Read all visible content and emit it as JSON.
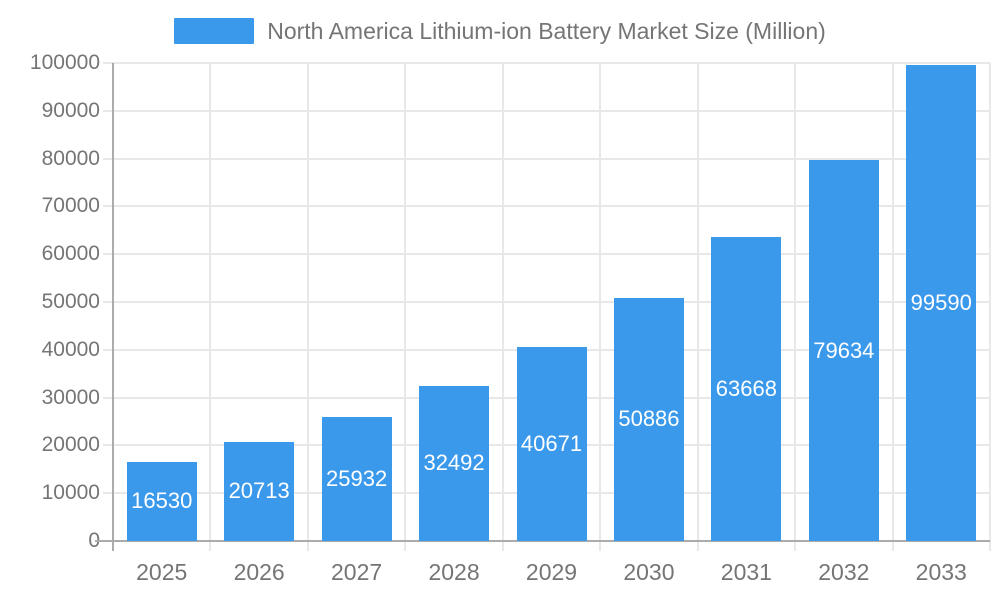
{
  "chart_data": {
    "type": "bar",
    "title": "North America Lithium-ion Battery Market Size (Million)",
    "categories": [
      "2025",
      "2026",
      "2027",
      "2028",
      "2029",
      "2030",
      "2031",
      "2032",
      "2033"
    ],
    "values": [
      16530,
      20713,
      25932,
      32492,
      40671,
      50886,
      63668,
      79634,
      99590
    ],
    "value_labels": [
      "16530",
      "20713",
      "25932",
      "32492",
      "40671",
      "50886",
      "63668",
      "79634",
      "99590"
    ],
    "xlabel": "",
    "ylabel": "",
    "ylim": [
      0,
      100000
    ],
    "ytick_step": 10000,
    "ytick_labels": [
      "0",
      "10000",
      "20000",
      "30000",
      "40000",
      "50000",
      "60000",
      "70000",
      "80000",
      "90000",
      "100000"
    ],
    "grid": true,
    "legend_position": "top-center",
    "colors": {
      "bar": "#3B99EC",
      "value_label": "#FFFFFF",
      "axis_label": "#757575",
      "legend_label": "#757575",
      "grid": "#E8E8E8",
      "axis_line": "#ABABAB"
    }
  }
}
